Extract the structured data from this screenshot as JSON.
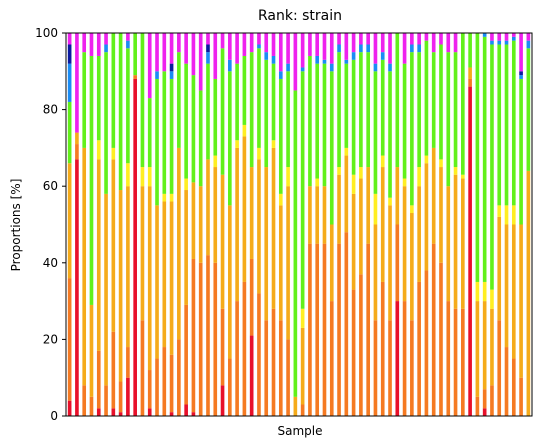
{
  "chart_data": {
    "type": "bar",
    "stacked": true,
    "title": "Rank: strain",
    "xlabel": "Sample",
    "ylabel": "Proportions [%]",
    "ylim": [
      0,
      100
    ],
    "yticks": [
      "0",
      "20",
      "40",
      "60",
      "80",
      "100"
    ],
    "x_tick_labels": "none",
    "grid": false,
    "legend": "none",
    "sample_count": 64,
    "layer_colors": [
      "#e8102a",
      "#f57a22",
      "#f5ab1a",
      "#ffee22",
      "#62f01a",
      "#1a8cf5",
      "#0a1aa0",
      "#ee22ee"
    ],
    "series": [
      {
        "name": "",
        "color": "#e8102a",
        "values": [
          4,
          67,
          0,
          0,
          2,
          0,
          2,
          1,
          10,
          88,
          0,
          2,
          0,
          0,
          1,
          0,
          3,
          1,
          0,
          0,
          0,
          8,
          0,
          0,
          0,
          21,
          0,
          0,
          0,
          0,
          0,
          0,
          0,
          0,
          0,
          0,
          0,
          0,
          0,
          0,
          0,
          0,
          0,
          0,
          0,
          30,
          0,
          0,
          0,
          0,
          0,
          0,
          0,
          0,
          0,
          86,
          0,
          2,
          0,
          0,
          0,
          0,
          0,
          0
        ]
      },
      {
        "name": "",
        "color": "#f57a22",
        "values": [
          32,
          4,
          8,
          5,
          15,
          8,
          20,
          8,
          8,
          1,
          25,
          10,
          15,
          18,
          15,
          20,
          26,
          40,
          40,
          42,
          40,
          20,
          15,
          30,
          35,
          20,
          32,
          25,
          28,
          25,
          20,
          0,
          3,
          45,
          45,
          45,
          30,
          45,
          48,
          33,
          37,
          45,
          25,
          35,
          25,
          20,
          30,
          25,
          35,
          38,
          45,
          40,
          30,
          28,
          28,
          2,
          5,
          5,
          8,
          25,
          18,
          15,
          10,
          0
        ]
      },
      {
        "name": "",
        "color": "#f5ab1a",
        "values": [
          30,
          3,
          62,
          24,
          50,
          50,
          45,
          50,
          42,
          0,
          35,
          48,
          40,
          38,
          40,
          50,
          30,
          20,
          20,
          25,
          25,
          35,
          40,
          40,
          38,
          24,
          35,
          40,
          42,
          30,
          40,
          5,
          20,
          15,
          15,
          15,
          20,
          18,
          20,
          25,
          25,
          20,
          25,
          30,
          30,
          15,
          30,
          28,
          25,
          28,
          25,
          25,
          30,
          35,
          34,
          3,
          25,
          23,
          20,
          27,
          32,
          35,
          40,
          64
        ]
      },
      {
        "name": "",
        "color": "#ffee22",
        "values": [
          0,
          0,
          0,
          0,
          5,
          0,
          3,
          0,
          6,
          0,
          5,
          5,
          0,
          2,
          2,
          0,
          3,
          0,
          0,
          0,
          3,
          0,
          0,
          2,
          3,
          0,
          3,
          0,
          2,
          3,
          5,
          0,
          5,
          0,
          2,
          0,
          0,
          2,
          2,
          5,
          3,
          0,
          8,
          3,
          2,
          0,
          2,
          2,
          5,
          2,
          0,
          2,
          0,
          2,
          1,
          0,
          5,
          5,
          5,
          3,
          5,
          5,
          0,
          0
        ]
      },
      {
        "name": "",
        "color": "#62f01a",
        "values": [
          16,
          0,
          25,
          65,
          22,
          37,
          30,
          41,
          30,
          11,
          35,
          18,
          33,
          32,
          30,
          25,
          30,
          28,
          25,
          25,
          20,
          33,
          35,
          20,
          18,
          30,
          26,
          28,
          20,
          30,
          25,
          80,
          62,
          34,
          30,
          32,
          40,
          30,
          22,
          30,
          30,
          30,
          32,
          25,
          33,
          35,
          30,
          40,
          30,
          30,
          25,
          30,
          35,
          30,
          37,
          9,
          65,
          64,
          64,
          42,
          42,
          43,
          38,
          32
        ]
      },
      {
        "name": "",
        "color": "#1a8cf5",
        "values": [
          10,
          0,
          0,
          0,
          0,
          2,
          0,
          0,
          2,
          0,
          0,
          0,
          2,
          0,
          2,
          0,
          0,
          0,
          0,
          3,
          0,
          0,
          3,
          0,
          0,
          0,
          1,
          2,
          2,
          2,
          2,
          0,
          1,
          0,
          2,
          1,
          2,
          2,
          1,
          2,
          2,
          2,
          2,
          2,
          2,
          2,
          0,
          2,
          2,
          0,
          0,
          0,
          0,
          0,
          0,
          0,
          0,
          1,
          1,
          1,
          1,
          1,
          1,
          2
        ]
      },
      {
        "name": "",
        "color": "#0a1aa0",
        "values": [
          5,
          0,
          0,
          0,
          0,
          0,
          0,
          0,
          0,
          0,
          0,
          0,
          0,
          0,
          2,
          0,
          0,
          0,
          0,
          2,
          0,
          0,
          0,
          0,
          0,
          0,
          0,
          0,
          0,
          0,
          0,
          0,
          0,
          0,
          0,
          0,
          0,
          0,
          0,
          0,
          0,
          0,
          0,
          0,
          0,
          0,
          0,
          0,
          0,
          0,
          0,
          0,
          0,
          0,
          0,
          0,
          0,
          0,
          0,
          0,
          0,
          0,
          1,
          0
        ]
      },
      {
        "name": "",
        "color": "#ee22ee",
        "values": [
          3,
          26,
          5,
          6,
          6,
          3,
          0,
          0,
          2,
          0,
          0,
          17,
          10,
          10,
          8,
          5,
          8,
          11,
          15,
          3,
          12,
          4,
          7,
          8,
          6,
          5,
          3,
          5,
          6,
          10,
          8,
          15,
          9,
          6,
          6,
          7,
          8,
          3,
          7,
          5,
          3,
          3,
          8,
          5,
          8,
          0,
          8,
          3,
          3,
          2,
          5,
          3,
          5,
          5,
          0,
          0,
          0,
          0,
          2,
          2,
          2,
          1,
          10,
          2
        ]
      }
    ]
  }
}
